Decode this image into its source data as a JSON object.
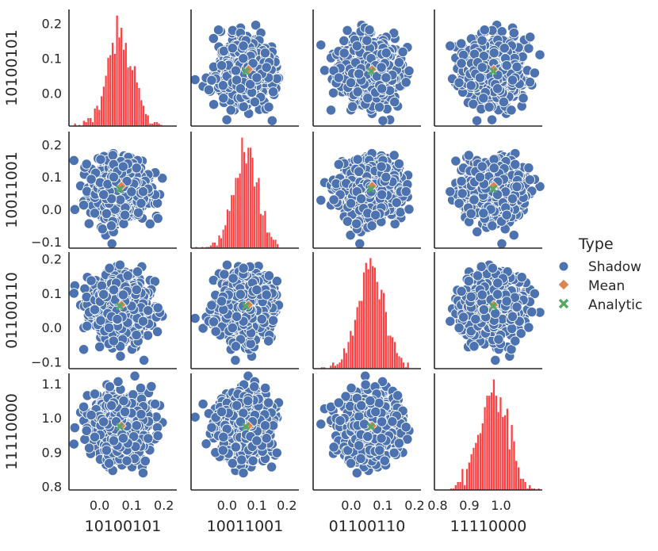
{
  "chart_data": {
    "type": "scatter",
    "variables": [
      "10100101",
      "10011001",
      "01100110",
      "11110000"
    ],
    "axis_ranges": [
      [
        -0.095,
        0.24
      ],
      [
        -0.12,
        0.24
      ],
      [
        -0.12,
        0.22
      ],
      [
        0.79,
        1.13
      ]
    ],
    "tick_values": [
      [
        0.0,
        0.1,
        0.2
      ],
      [
        -0.1,
        0.0,
        0.1,
        0.2
      ],
      [
        -0.1,
        0.0,
        0.1,
        0.2
      ],
      [
        0.8,
        0.9,
        1.0,
        1.1
      ]
    ],
    "tick_labels": [
      [
        "0.0",
        "0.1",
        "0.2"
      ],
      [
        "−0.1",
        "0.0",
        "0.1",
        "0.2"
      ],
      [
        "−0.1",
        "0.0",
        "0.1",
        "0.2"
      ],
      [
        "0.8",
        "0.9",
        "1.0",
        "1.1"
      ]
    ],
    "bottom_tick_labels": [
      [
        "0.0",
        "0.1",
        "0.2"
      ],
      [
        "0.0",
        "0.1",
        "0.2"
      ],
      [
        "0.0",
        "0.1",
        "0.2"
      ],
      [
        "0.8",
        "0.9",
        "1.0"
      ]
    ],
    "bottom_tick_values": [
      [
        0.0,
        0.1,
        0.2
      ],
      [
        0.0,
        0.1,
        0.2
      ],
      [
        0.0,
        0.1,
        0.2
      ],
      [
        0.8,
        0.9,
        1.0
      ]
    ],
    "left_tick_labels": [
      [
        "0.0",
        "0.1",
        "0.2"
      ],
      [
        "−0.1",
        "0.0",
        "0.1",
        "0.2"
      ],
      [
        "−0.1",
        "0.0",
        "0.1",
        "0.2"
      ],
      [
        "0.8",
        "0.9",
        "1.0",
        "1.1"
      ]
    ],
    "left_tick_values": [
      [
        0.0,
        0.1,
        0.2
      ],
      [
        -0.1,
        0.0,
        0.1,
        0.2
      ],
      [
        -0.1,
        0.0,
        0.1,
        0.2
      ],
      [
        0.8,
        0.9,
        1.0,
        1.1
      ]
    ],
    "shadow_mean": [
      0.0625,
      0.0625,
      0.0625,
      0.975
    ],
    "shadow_std": [
      0.042,
      0.042,
      0.042,
      0.045
    ],
    "shadow_count": 1000,
    "mean": [
      0.068,
      0.072,
      0.066,
      0.977
    ],
    "analytic": [
      0.0625,
      0.0625,
      0.0625,
      0.975
    ],
    "diagonal": "histogram",
    "histogram_bins": 40,
    "legend": {
      "title": "Type",
      "placement": "right",
      "entries": [
        {
          "label": "Shadow",
          "marker": "circle",
          "color": "#4c72b0"
        },
        {
          "label": "Mean",
          "marker": "diamond",
          "color": "#dd8452"
        },
        {
          "label": "Analytic",
          "marker": "x",
          "color": "#55a868"
        }
      ]
    },
    "colors": {
      "shadow": "#4c72b0",
      "mean": "#dd8452",
      "analytic": "#55a868",
      "histogram": "#ff4040",
      "axis": "#262626"
    },
    "grid": false
  }
}
